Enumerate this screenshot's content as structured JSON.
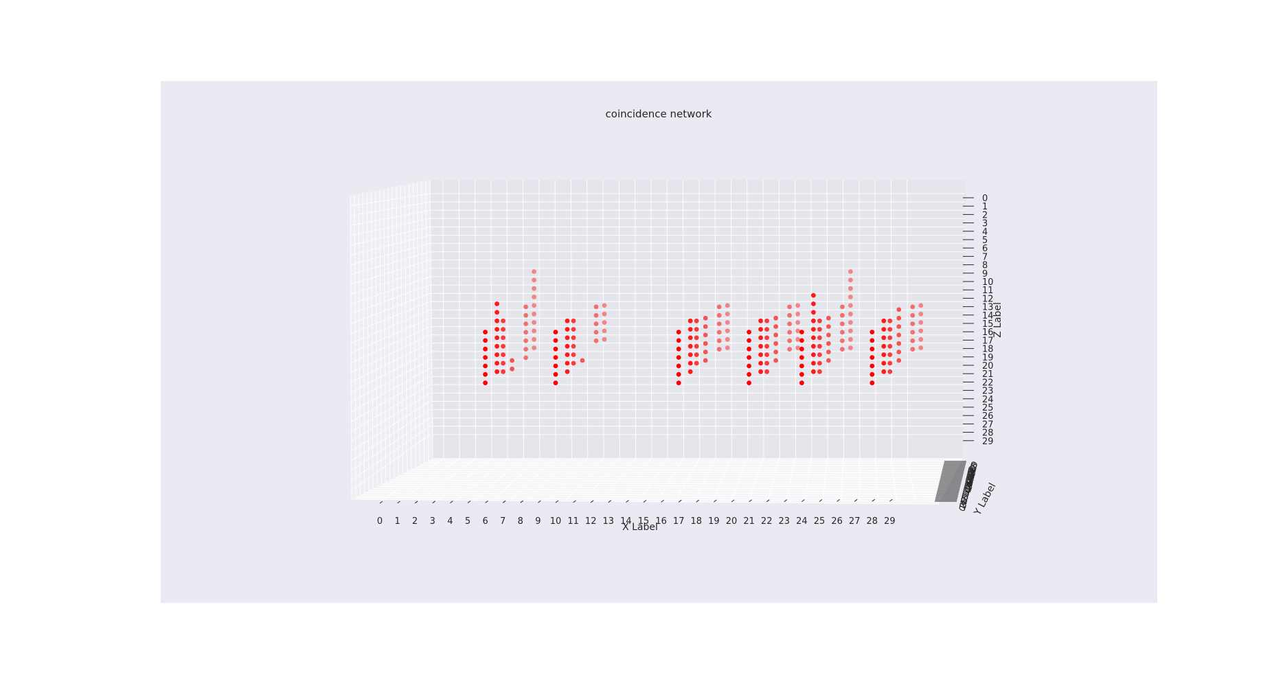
{
  "chart_data": {
    "type": "scatter",
    "projection": "3d",
    "title": "coincidence network",
    "xlabel": "X Label",
    "ylabel": "Y Label",
    "zlabel": "Z Label",
    "xticks": [
      "0",
      "1",
      "2",
      "3",
      "4",
      "5",
      "6",
      "7",
      "8",
      "9",
      "10",
      "11",
      "12",
      "13",
      "14",
      "15",
      "16",
      "17",
      "18",
      "19",
      "20",
      "21",
      "22",
      "23",
      "24",
      "25",
      "26",
      "27",
      "28",
      "29"
    ],
    "zticks": [
      "0",
      "1",
      "2",
      "3",
      "4",
      "5",
      "6",
      "7",
      "8",
      "9",
      "10",
      "11",
      "12",
      "13",
      "14",
      "15",
      "16",
      "17",
      "18",
      "19",
      "20",
      "21",
      "22",
      "23",
      "24",
      "25",
      "26",
      "27",
      "28",
      "29"
    ],
    "yticks": [
      "0",
      "1",
      "2",
      "3",
      "4",
      "5",
      "6",
      "7",
      "8",
      "9",
      "10",
      "11",
      "12",
      "13",
      "14",
      "15",
      "16",
      "17",
      "18",
      "19",
      "20",
      "21",
      "22",
      "23",
      "24",
      "25",
      "26",
      "27",
      "28",
      "29"
    ],
    "zlim": [
      29,
      0
    ],
    "grid": true,
    "marker_color": "#ff0000",
    "clusters": [
      {
        "x": 6,
        "columns": [
          [
            16,
            22
          ],
          [
            13,
            21
          ],
          [
            15,
            21
          ],
          [
            20,
            21
          ],
          [
            14,
            20
          ],
          [
            10,
            19
          ]
        ]
      },
      {
        "x": 10,
        "columns": [
          [
            16,
            22
          ],
          [
            15,
            21
          ],
          [
            15,
            20
          ],
          [
            20,
            20
          ],
          [
            14,
            18
          ],
          [
            14,
            18
          ]
        ]
      },
      {
        "x": 17,
        "columns": [
          [
            16,
            22
          ],
          [
            15,
            21
          ],
          [
            15,
            20
          ],
          [
            15,
            20
          ],
          [
            14,
            19
          ],
          [
            14,
            19
          ]
        ]
      },
      {
        "x": 21,
        "columns": [
          [
            16,
            22
          ],
          [
            15,
            21
          ],
          [
            15,
            21
          ],
          [
            15,
            20
          ],
          [
            14,
            19
          ],
          [
            14,
            19
          ]
        ]
      },
      {
        "x": 24,
        "columns": [
          [
            16,
            22
          ],
          [
            12,
            21
          ],
          [
            15,
            21
          ],
          [
            15,
            20
          ],
          [
            14,
            19
          ],
          [
            10,
            19
          ]
        ]
      },
      {
        "x": 28,
        "columns": [
          [
            16,
            22
          ],
          [
            15,
            21
          ],
          [
            15,
            21
          ],
          [
            14,
            20
          ],
          [
            14,
            19
          ],
          [
            14,
            19
          ]
        ]
      }
    ]
  },
  "colors": {
    "panel_bg": "#eaeaf2",
    "pane_bg": "#e5e5ec",
    "floor_bg": "#f5f5f7",
    "grid": "#ffffff",
    "marker": "#ff0000",
    "text": "#262626"
  }
}
